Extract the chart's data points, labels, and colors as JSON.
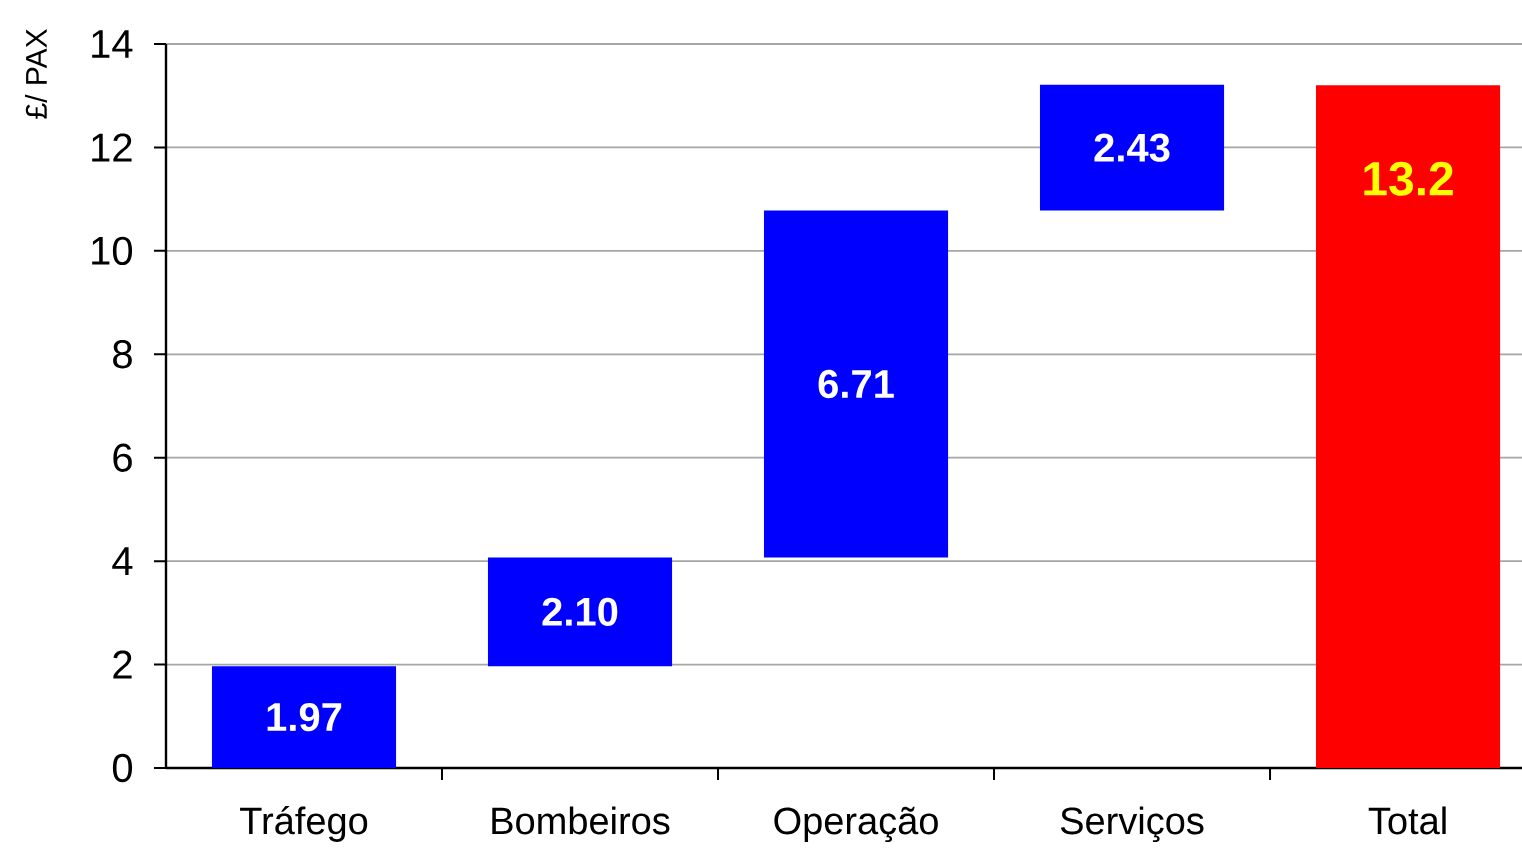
{
  "chart_data": {
    "type": "bar",
    "ylabel": "£/ PAX",
    "categories": [
      "Tráfego",
      "Bombeiros",
      "Operação",
      "Serviços",
      "Total"
    ],
    "values": [
      1.97,
      2.1,
      6.71,
      2.43,
      13.2
    ],
    "base": [
      0,
      1.97,
      4.07,
      10.78,
      0
    ],
    "colors": [
      "#0000ff",
      "#0000ff",
      "#0000ff",
      "#0000ff",
      "#ff0000"
    ],
    "value_labels": [
      "1.97",
      "2.10",
      "6.71",
      "2.43",
      "13.2"
    ],
    "ylim": [
      0,
      14
    ],
    "yticks": [
      0,
      2,
      4,
      6,
      8,
      10,
      12,
      14
    ],
    "grid": "y"
  }
}
